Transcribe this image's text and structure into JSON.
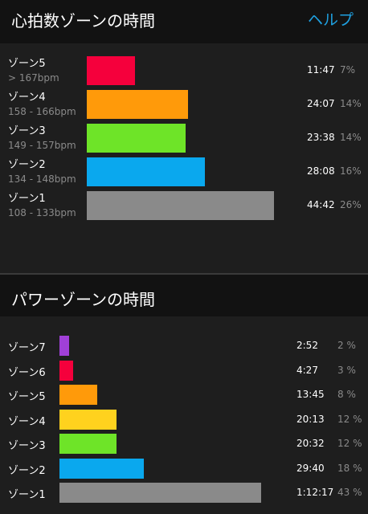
{
  "heart_rate": {
    "title": "心拍数ゾーンの時間",
    "help_label": "ヘルプ",
    "zones": [
      {
        "name": "ゾーン5",
        "range": "> 167bpm",
        "time": "11:47",
        "percent": "7%",
        "fraction": 0.258,
        "color": "#f5003c"
      },
      {
        "name": "ゾーン4",
        "range": "158 - 166bpm",
        "time": "24:07",
        "percent": "14%",
        "fraction": 0.54,
        "color": "#ff9a0a"
      },
      {
        "name": "ゾーン3",
        "range": "149 - 157bpm",
        "time": "23:38",
        "percent": "14%",
        "fraction": 0.528,
        "color": "#6ee428"
      },
      {
        "name": "ゾーン2",
        "range": "134 - 148bpm",
        "time": "28:08",
        "percent": "16%",
        "fraction": 0.629,
        "color": "#0aa8ee"
      },
      {
        "name": "ゾーン1",
        "range": "108 - 133bpm",
        "time": "44:42",
        "percent": "26%",
        "fraction": 1.0,
        "color": "#8a8a8a"
      }
    ]
  },
  "power": {
    "title": "パワーゾーンの時間",
    "zones": [
      {
        "name": "ゾーン7",
        "time": "2:52",
        "percent": "2 %",
        "fraction": 0.047,
        "color": "#a040d8"
      },
      {
        "name": "ゾーン6",
        "time": "4:27",
        "percent": "3 %",
        "fraction": 0.067,
        "color": "#f5003c"
      },
      {
        "name": "ゾーン5",
        "time": "13:45",
        "percent": "8 %",
        "fraction": 0.186,
        "color": "#ff9a0a"
      },
      {
        "name": "ゾーン4",
        "time": "20:13",
        "percent": "12 %",
        "fraction": 0.281,
        "color": "#ffd21e"
      },
      {
        "name": "ゾーン3",
        "time": "20:32",
        "percent": "12 %",
        "fraction": 0.281,
        "color": "#6ee428"
      },
      {
        "name": "ゾーン2",
        "time": "29:40",
        "percent": "18 %",
        "fraction": 0.419,
        "color": "#0aa8ee"
      },
      {
        "name": "ゾーン1",
        "time": "1:12:17",
        "percent": "43 %",
        "fraction": 1.0,
        "color": "#8a8a8a"
      }
    ]
  }
}
